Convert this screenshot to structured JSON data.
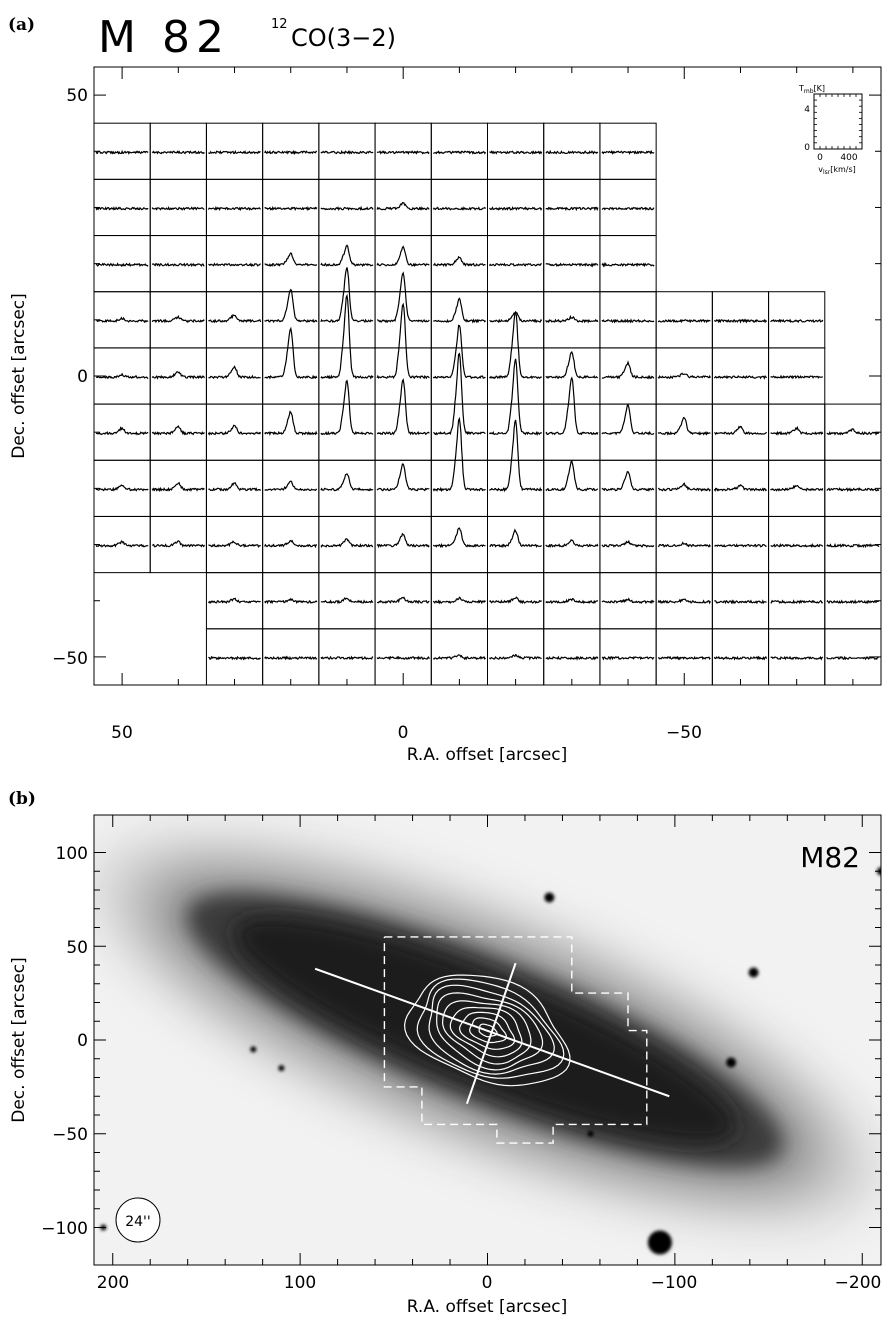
{
  "panel_a": {
    "panel_label": "(a)",
    "source": "M 82",
    "line_prefix": "12",
    "line_name": "CO(3−2)",
    "xlabel": "R.A. offset [arcsec]",
    "ylabel": "Dec. offset [arcsec]",
    "inset": {
      "ylabel_main": "T",
      "ylabel_sub": "mb",
      "ylabel_unit": "[K]",
      "y_tick_0": "0",
      "y_tick_4": "4",
      "x_tick_0": "0",
      "x_tick_400": "400",
      "xlabel_main": "v",
      "xlabel_sub": "lsr",
      "xlabel_unit": "[km/s]"
    },
    "chart_data": {
      "type": "spectral-map",
      "xlim": [
        55,
        -85
      ],
      "ylim": [
        -55,
        55
      ],
      "x_ticks": [
        {
          "value": 50,
          "label": "50"
        },
        {
          "value": 0,
          "label": "0"
        },
        {
          "value": -50,
          "label": "−50"
        }
      ],
      "y_ticks": [
        {
          "value": 50,
          "label": "50"
        },
        {
          "value": 0,
          "label": "0"
        },
        {
          "value": -50,
          "label": "−50"
        }
      ],
      "grid_spacing_arcsec": 10,
      "rows": [
        {
          "dec": 40,
          "ra": [
            50,
            40,
            30,
            20,
            10,
            0,
            -10,
            -20,
            -30,
            -40
          ],
          "peaks": [
            0,
            0,
            0,
            0,
            0,
            0,
            0,
            0,
            0,
            0
          ]
        },
        {
          "dec": 30,
          "ra": [
            50,
            40,
            30,
            20,
            10,
            0,
            -10,
            -20,
            -30,
            -40
          ],
          "peaks": [
            0,
            0,
            0,
            0,
            0,
            0.4,
            0,
            0,
            0,
            0
          ]
        },
        {
          "dec": 20,
          "ra": [
            50,
            40,
            30,
            20,
            10,
            0,
            -10,
            -20,
            -30,
            -40
          ],
          "peaks": [
            0,
            0,
            0,
            0.9,
            1.5,
            1.4,
            0.6,
            0,
            0,
            0
          ]
        },
        {
          "dec": 10,
          "ra": [
            50,
            40,
            30,
            20,
            10,
            0,
            -10,
            -20,
            -30,
            -40,
            -50,
            -60,
            -70
          ],
          "peaks": [
            0.2,
            0.3,
            0.5,
            2.5,
            4.2,
            3.8,
            1.7,
            0.7,
            0.3,
            0,
            0,
            0,
            0
          ]
        },
        {
          "dec": 0,
          "ra": [
            50,
            40,
            30,
            20,
            10,
            0,
            -10,
            -20,
            -30,
            -40,
            -50,
            -60,
            -70
          ],
          "peaks": [
            0.2,
            0.4,
            0.8,
            3.8,
            6.4,
            5.8,
            4.1,
            5.1,
            2.0,
            1.1,
            0.3,
            0,
            0
          ]
        },
        {
          "dec": -10,
          "ra": [
            50,
            40,
            30,
            20,
            10,
            0,
            -10,
            -20,
            -30,
            -40,
            -50,
            -60,
            -70,
            -80
          ],
          "peaks": [
            0.4,
            0.5,
            0.6,
            1.7,
            4.1,
            4.2,
            6.3,
            5.8,
            4.4,
            2.2,
            1.2,
            0.5,
            0.4,
            0.3
          ]
        },
        {
          "dec": -20,
          "ra": [
            50,
            40,
            30,
            20,
            10,
            0,
            -10,
            -20,
            -30,
            -40,
            -50,
            -60,
            -70,
            -80
          ],
          "peaks": [
            0.3,
            0.5,
            0.5,
            0.6,
            1.3,
            2.0,
            5.6,
            5.4,
            2.2,
            1.4,
            0.4,
            0.3,
            0.3,
            0
          ]
        },
        {
          "dec": -30,
          "ra": [
            50,
            40,
            30,
            20,
            10,
            0,
            -10,
            -20,
            -30,
            -40,
            -50,
            -60,
            -70,
            -80
          ],
          "peaks": [
            0.3,
            0.3,
            0.3,
            0.4,
            0.5,
            0.9,
            1.4,
            1.2,
            0.4,
            0.3,
            0.2,
            0,
            0,
            0
          ]
        },
        {
          "dec": -40,
          "ra": [
            30,
            20,
            10,
            0,
            -10,
            -20,
            -30,
            -40,
            -50,
            -60,
            -70,
            -80
          ],
          "peaks": [
            0.2,
            0.2,
            0.3,
            0.3,
            0.3,
            0.3,
            0.2,
            0.2,
            0.2,
            0,
            0,
            0
          ]
        },
        {
          "dec": -50,
          "ra": [
            30,
            20,
            10,
            0,
            -10,
            -20,
            -30,
            -40,
            -50,
            -60,
            -70,
            -80
          ],
          "peaks": [
            0,
            0,
            0,
            0,
            0.2,
            0.2,
            0,
            0,
            0,
            0,
            0,
            0
          ]
        },
        {
          "dec": -60,
          "ra": [
            -10,
            -20,
            -30
          ],
          "peaks": [
            0,
            0,
            0
          ]
        }
      ]
    }
  },
  "panel_b": {
    "panel_label": "(b)",
    "source": "M82",
    "beam_label": "24''",
    "xlabel": "R.A. offset [arcsec]",
    "ylabel": "Dec. offset [arcsec]",
    "chart_data": {
      "type": "image-contour",
      "xlim": [
        210,
        -210
      ],
      "ylim": [
        -120,
        120
      ],
      "x_ticks": [
        {
          "value": 200,
          "label": "200"
        },
        {
          "value": 100,
          "label": "100"
        },
        {
          "value": 0,
          "label": "0"
        },
        {
          "value": -100,
          "label": "−100"
        },
        {
          "value": -200,
          "label": "−200"
        }
      ],
      "y_ticks": [
        {
          "value": 100,
          "label": "100"
        },
        {
          "value": 50,
          "label": "50"
        },
        {
          "value": 0,
          "label": "0"
        },
        {
          "value": -50,
          "label": "−50"
        },
        {
          "value": -100,
          "label": "−100"
        }
      ],
      "major_axis": [
        [
          92,
          38
        ],
        [
          -97,
          -30
        ]
      ],
      "minor_axis": [
        [
          -15,
          41
        ],
        [
          11,
          -34
        ]
      ],
      "map_boundary": [
        [
          55,
          55
        ],
        [
          -45,
          55
        ],
        [
          -45,
          25
        ],
        [
          -75,
          25
        ],
        [
          -75,
          5
        ],
        [
          -85,
          5
        ],
        [
          -85,
          -45
        ],
        [
          -35,
          -45
        ],
        [
          -35,
          -55
        ],
        [
          -5,
          -55
        ],
        [
          -5,
          -45
        ],
        [
          35,
          -45
        ],
        [
          35,
          -25
        ],
        [
          55,
          -25
        ],
        [
          55,
          55
        ]
      ],
      "contour_levels": 9,
      "contour_center": [
        0,
        5
      ],
      "beam_fwhm_arcsec": 24
    }
  }
}
